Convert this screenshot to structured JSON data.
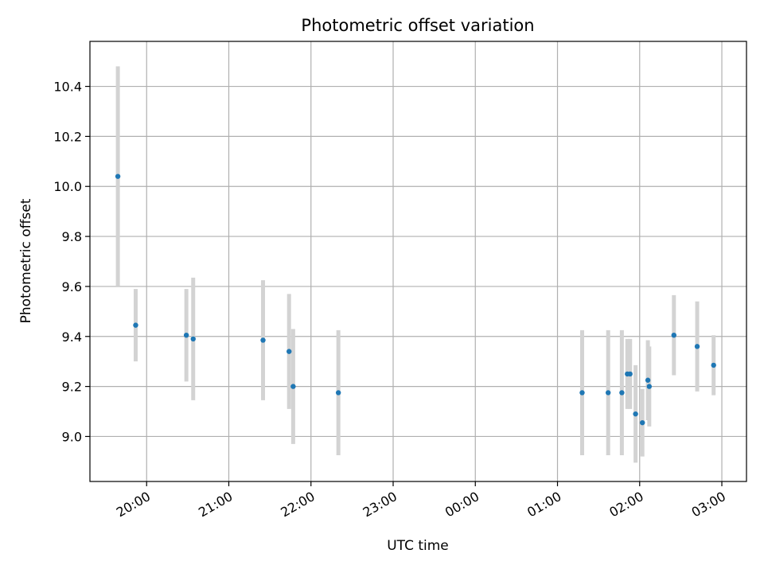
{
  "chart_data": {
    "type": "scatter",
    "title": "Photometric offset variation",
    "xlabel": "UTC time",
    "ylabel": "Photometric offset",
    "x_tick_labels": [
      "20:00",
      "21:00",
      "22:00",
      "23:00",
      "00:00",
      "01:00",
      "02:00",
      "03:00"
    ],
    "y_tick_labels": [
      "9.0",
      "9.2",
      "9.4",
      "9.6",
      "9.8",
      "10.0",
      "10.2",
      "10.4"
    ],
    "x_tick_hours": [
      0,
      1,
      2,
      3,
      4,
      5,
      6,
      7
    ],
    "y_ticks": [
      9.0,
      9.2,
      9.4,
      9.6,
      9.8,
      10.0,
      10.2,
      10.4
    ],
    "xlim_hours": [
      -0.69,
      7.3
    ],
    "ylim": [
      8.82,
      10.58
    ],
    "grid": true,
    "point_color": "#1f77b4",
    "errorbar_color": "#d3d3d3",
    "points": [
      {
        "t": "19:39",
        "y": 10.04,
        "err": 0.44
      },
      {
        "t": "19:52",
        "y": 9.445,
        "err": 0.145
      },
      {
        "t": "20:29",
        "y": 9.405,
        "err": 0.185
      },
      {
        "t": "20:34",
        "y": 9.39,
        "err": 0.245
      },
      {
        "t": "21:25",
        "y": 9.385,
        "err": 0.24
      },
      {
        "t": "21:44",
        "y": 9.34,
        "err": 0.23
      },
      {
        "t": "21:47",
        "y": 9.2,
        "err": 0.23
      },
      {
        "t": "22:20",
        "y": 9.175,
        "err": 0.25
      },
      {
        "t": "01:18",
        "y": 9.175,
        "err": 0.25
      },
      {
        "t": "01:37",
        "y": 9.175,
        "err": 0.25
      },
      {
        "t": "01:47",
        "y": 9.175,
        "err": 0.25
      },
      {
        "t": "01:51",
        "y": 9.25,
        "err": 0.14
      },
      {
        "t": "01:53",
        "y": 9.25,
        "err": 0.14
      },
      {
        "t": "01:57",
        "y": 9.09,
        "err": 0.195
      },
      {
        "t": "02:02",
        "y": 9.055,
        "err": 0.135
      },
      {
        "t": "02:06",
        "y": 9.225,
        "err": 0.16
      },
      {
        "t": "02:07",
        "y": 9.2,
        "err": 0.16
      },
      {
        "t": "02:25",
        "y": 9.405,
        "err": 0.16
      },
      {
        "t": "02:42",
        "y": 9.36,
        "err": 0.18
      },
      {
        "t": "02:54",
        "y": 9.285,
        "err": 0.12
      }
    ]
  }
}
